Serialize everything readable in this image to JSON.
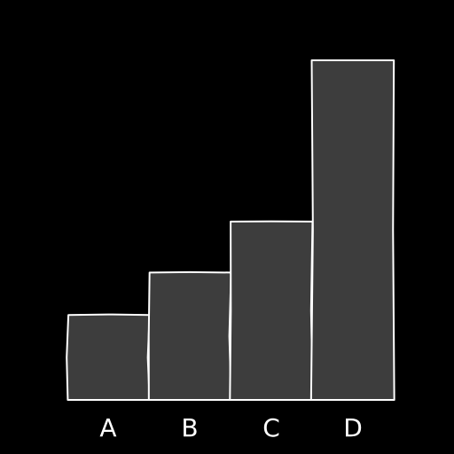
{
  "chart_data": {
    "type": "bar",
    "categories": [
      "A",
      "B",
      "C",
      "D"
    ],
    "values": [
      10,
      15,
      21,
      40
    ],
    "ylim": [
      0,
      40
    ],
    "grid": false,
    "title": "",
    "xlabel": "",
    "ylabel": "",
    "colors": {
      "background": "#000000",
      "bar_fill": "#3d3d3d",
      "bar_stroke": "#ffffff",
      "text": "#ffffff"
    }
  }
}
